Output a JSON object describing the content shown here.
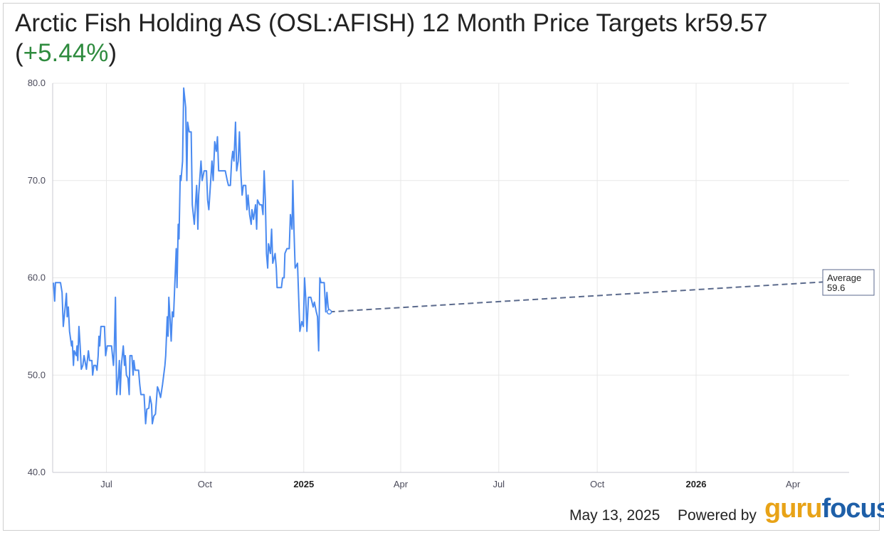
{
  "title": {
    "main": "Arctic Fish Holding AS (OSL:AFISH) 12 Month Price Targets kr59.57",
    "open_paren": "(",
    "change": "+5.44%",
    "close_paren": ")"
  },
  "footer": {
    "date": "May 13, 2025",
    "powered_by": "Powered by",
    "logo_guru": "guru",
    "logo_focus": "focus"
  },
  "colors": {
    "line": "#4a8af0",
    "target": "#5b6a8c",
    "grid": "#e8e8e8",
    "change": "#2e8b3e"
  },
  "chart_data": {
    "type": "line",
    "title": "Arctic Fish Holding AS (OSL:AFISH) 12 Month Price Targets kr59.57 (+5.44%)",
    "xlabel": "",
    "ylabel": "",
    "ylim": [
      40,
      80
    ],
    "xlim": [
      2024.36,
      2026.39
    ],
    "y_ticks": [
      "40.0",
      "50.0",
      "60.0",
      "70.0",
      "80.0"
    ],
    "x_ticks": [
      {
        "label": "Jul",
        "x": 2024.497,
        "bold": false
      },
      {
        "label": "Oct",
        "x": 2024.748,
        "bold": false
      },
      {
        "label": "2025",
        "x": 2025.0,
        "bold": true
      },
      {
        "label": "Apr",
        "x": 2025.247,
        "bold": false
      },
      {
        "label": "Jul",
        "x": 2025.497,
        "bold": false
      },
      {
        "label": "Oct",
        "x": 2025.748,
        "bold": false
      },
      {
        "label": "2026",
        "x": 2026.0,
        "bold": true
      },
      {
        "label": "Apr",
        "x": 2026.247,
        "bold": false
      }
    ],
    "series": [
      {
        "name": "Price",
        "points": [
          [
            2024.362,
            59.5
          ],
          [
            2024.365,
            57.6
          ],
          [
            2024.367,
            59.5
          ],
          [
            2024.38,
            59.5
          ],
          [
            2024.384,
            58.5
          ],
          [
            2024.387,
            55.0
          ],
          [
            2024.392,
            57.0
          ],
          [
            2024.395,
            58.4
          ],
          [
            2024.397,
            56.0
          ],
          [
            2024.4,
            57.0
          ],
          [
            2024.403,
            54.5
          ],
          [
            2024.408,
            53.0
          ],
          [
            2024.41,
            53.5
          ],
          [
            2024.413,
            51.0
          ],
          [
            2024.415,
            52.5
          ],
          [
            2024.42,
            52.0
          ],
          [
            2024.422,
            53.0
          ],
          [
            2024.424,
            51.5
          ],
          [
            2024.427,
            55.0
          ],
          [
            2024.43,
            53.0
          ],
          [
            2024.433,
            50.6
          ],
          [
            2024.437,
            51.0
          ],
          [
            2024.44,
            52.0
          ],
          [
            2024.446,
            50.6
          ],
          [
            2024.451,
            52.5
          ],
          [
            2024.454,
            51.5
          ],
          [
            2024.46,
            51.5
          ],
          [
            2024.462,
            50.0
          ],
          [
            2024.465,
            51.0
          ],
          [
            2024.47,
            51.0
          ],
          [
            2024.473,
            50.5
          ],
          [
            2024.476,
            52.0
          ],
          [
            2024.478,
            54.0
          ],
          [
            2024.48,
            53.0
          ],
          [
            2024.483,
            55.0
          ],
          [
            2024.492,
            55.0
          ],
          [
            2024.495,
            52.0
          ],
          [
            2024.499,
            53.0
          ],
          [
            2024.51,
            53.0
          ],
          [
            2024.515,
            51.0
          ],
          [
            2024.517,
            52.5
          ],
          [
            2024.52,
            58.0
          ],
          [
            2024.523,
            48.0
          ],
          [
            2024.528,
            50.0
          ],
          [
            2024.53,
            51.5
          ],
          [
            2024.532,
            48.0
          ],
          [
            2024.535,
            51.0
          ],
          [
            2024.54,
            53.0
          ],
          [
            2024.543,
            51.0
          ],
          [
            2024.545,
            52.0
          ],
          [
            2024.548,
            50.0
          ],
          [
            2024.552,
            49.7
          ],
          [
            2024.555,
            48.0
          ],
          [
            2024.557,
            52.0
          ],
          [
            2024.562,
            52.0
          ],
          [
            2024.565,
            50.0
          ],
          [
            2024.567,
            51.5
          ],
          [
            2024.57,
            50.5
          ],
          [
            2024.575,
            50.5
          ],
          [
            2024.579,
            50.5
          ],
          [
            2024.582,
            49.0
          ],
          [
            2024.585,
            48.0
          ],
          [
            2024.593,
            48.0
          ],
          [
            2024.597,
            45.0
          ],
          [
            2024.6,
            46.5
          ],
          [
            2024.605,
            46.6
          ],
          [
            2024.608,
            47.8
          ],
          [
            2024.612,
            47.0
          ],
          [
            2024.614,
            45.0
          ],
          [
            2024.618,
            45.8
          ],
          [
            2024.622,
            46.0
          ],
          [
            2024.627,
            48.8
          ],
          [
            2024.63,
            48.5
          ],
          [
            2024.635,
            47.7
          ],
          [
            2024.64,
            49.0
          ],
          [
            2024.646,
            51.0
          ],
          [
            2024.648,
            52.0
          ],
          [
            2024.652,
            56.0
          ],
          [
            2024.654,
            54.0
          ],
          [
            2024.656,
            58.0
          ],
          [
            2024.659,
            56.0
          ],
          [
            2024.662,
            53.5
          ],
          [
            2024.665,
            56.5
          ],
          [
            2024.668,
            56.0
          ],
          [
            2024.671,
            59.0
          ],
          [
            2024.673,
            61.0
          ],
          [
            2024.675,
            63.0
          ],
          [
            2024.677,
            59.0
          ],
          [
            2024.68,
            65.5
          ],
          [
            2024.682,
            64.0
          ],
          [
            2024.685,
            70.5
          ],
          [
            2024.687,
            70.0
          ],
          [
            2024.691,
            72.0
          ],
          [
            2024.694,
            79.5
          ],
          [
            2024.699,
            77.5
          ],
          [
            2024.702,
            70.0
          ],
          [
            2024.704,
            76.0
          ],
          [
            2024.708,
            75.0
          ],
          [
            2024.713,
            75.0
          ],
          [
            2024.716,
            67.5
          ],
          [
            2024.721,
            65.5
          ],
          [
            2024.727,
            69.5
          ],
          [
            2024.73,
            65.0
          ],
          [
            2024.732,
            68.5
          ],
          [
            2024.738,
            72.0
          ],
          [
            2024.741,
            70.0
          ],
          [
            2024.746,
            71.0
          ],
          [
            2024.752,
            71.0
          ],
          [
            2024.755,
            68.0
          ],
          [
            2024.758,
            67.0
          ],
          [
            2024.762,
            69.5
          ],
          [
            2024.766,
            72.0
          ],
          [
            2024.769,
            70.0
          ],
          [
            2024.773,
            74.0
          ],
          [
            2024.777,
            73.0
          ],
          [
            2024.78,
            74.5
          ],
          [
            2024.783,
            71.0
          ],
          [
            2024.8,
            71.0
          ],
          [
            2024.805,
            70.0
          ],
          [
            2024.808,
            69.5
          ],
          [
            2024.813,
            69.5
          ],
          [
            2024.816,
            72.0
          ],
          [
            2024.819,
            73.0
          ],
          [
            2024.822,
            72.0
          ],
          [
            2024.826,
            76.0
          ],
          [
            2024.829,
            71.0
          ],
          [
            2024.833,
            72.0
          ],
          [
            2024.836,
            75.0
          ],
          [
            2024.84,
            70.5
          ],
          [
            2024.843,
            68.5
          ],
          [
            2024.846,
            69.5
          ],
          [
            2024.852,
            69.5
          ],
          [
            2024.855,
            67.0
          ],
          [
            2024.858,
            68.5
          ],
          [
            2024.862,
            66.5
          ],
          [
            2024.866,
            65.5
          ],
          [
            2024.868,
            67.0
          ],
          [
            2024.872,
            66.0
          ],
          [
            2024.877,
            67.5
          ],
          [
            2024.88,
            65.0
          ],
          [
            2024.882,
            68.0
          ],
          [
            2024.888,
            67.5
          ],
          [
            2024.893,
            67.5
          ],
          [
            2024.896,
            66.5
          ],
          [
            2024.899,
            71.0
          ],
          [
            2024.902,
            68.0
          ],
          [
            2024.905,
            62.5
          ],
          [
            2024.908,
            61.0
          ],
          [
            2024.91,
            63.5
          ],
          [
            2024.915,
            62.5
          ],
          [
            2024.918,
            65.0
          ],
          [
            2024.921,
            61.5
          ],
          [
            2024.924,
            62.0
          ],
          [
            2024.927,
            62.5
          ],
          [
            2024.93,
            61.0
          ],
          [
            2024.932,
            59.0
          ],
          [
            2024.943,
            59.0
          ],
          [
            2024.946,
            60.0
          ],
          [
            2024.95,
            60.0
          ],
          [
            2024.952,
            62.5
          ],
          [
            2024.957,
            63.0
          ],
          [
            2024.963,
            63.0
          ],
          [
            2024.966,
            66.5
          ],
          [
            2024.97,
            65.0
          ],
          [
            2024.972,
            70.0
          ],
          [
            2024.975,
            65.0
          ],
          [
            2024.978,
            61.0
          ],
          [
            2024.984,
            61.5
          ],
          [
            2024.987,
            58.0
          ],
          [
            2024.99,
            54.5
          ],
          [
            2024.995,
            55.5
          ],
          [
            2024.999,
            55.0
          ],
          [
            2025.002,
            60.0
          ],
          [
            2025.005,
            58.0
          ],
          [
            2025.008,
            54.5
          ],
          [
            2025.012,
            58.0
          ],
          [
            2025.018,
            58.0
          ],
          [
            2025.024,
            57.0
          ],
          [
            2025.027,
            57.5
          ],
          [
            2025.032,
            56.5
          ],
          [
            2025.035,
            56.0
          ],
          [
            2025.038,
            52.5
          ],
          [
            2025.041,
            60.0
          ],
          [
            2025.044,
            59.5
          ],
          [
            2025.052,
            59.5
          ],
          [
            2025.056,
            56.5
          ],
          [
            2025.059,
            58.5
          ],
          [
            2025.062,
            57.0
          ],
          [
            2025.065,
            56.5
          ]
        ]
      },
      {
        "name": "Average",
        "start": [
          2025.065,
          56.5
        ],
        "end": [
          2026.39,
          59.57
        ]
      }
    ],
    "annotations": [
      {
        "label": "Average",
        "value": "59.6"
      }
    ]
  }
}
